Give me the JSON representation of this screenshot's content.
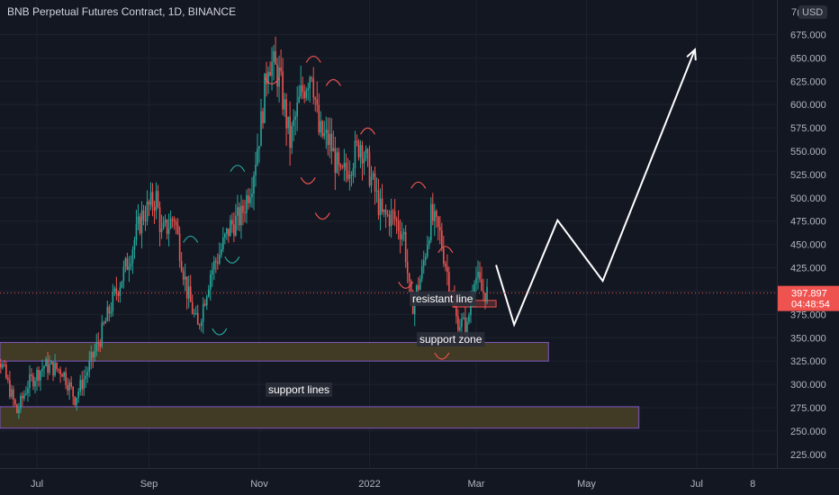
{
  "header": {
    "title": "BNB Perpetual Futures Contract, 1D, BINANCE"
  },
  "price_axis": {
    "currency_label": "USD",
    "cut_label": "7("
  },
  "last_price": {
    "value": "397.897",
    "countdown": "04:48:54"
  },
  "annotations": {
    "resistant_line": "resistant line",
    "support_zone": "support zone",
    "support_lines": "support lines"
  },
  "colors": {
    "background": "#131722",
    "up": "#26a69a",
    "down": "#ef5350",
    "zone_fill": "#4a4124",
    "zone_border": "#7e57c2",
    "projection": "#ffffff",
    "price_tag": "#ef5350"
  },
  "chart_data": {
    "type": "candlestick",
    "title": "BNB Perpetual Futures Contract, 1D, BINANCE",
    "y_ticks": [
      225,
      250,
      275,
      300,
      325,
      350,
      375,
      400,
      425,
      450,
      475,
      500,
      525,
      550,
      575,
      600,
      625,
      650,
      675
    ],
    "ylim": [
      210,
      700
    ],
    "x_ticks": [
      "Jul",
      "Sep",
      "Nov",
      "2022",
      "Mar",
      "May",
      "Jul",
      "8"
    ],
    "x_tick_dates": [
      "2021-07-01",
      "2021-09-01",
      "2021-11-01",
      "2022-01-01",
      "2022-03-01",
      "2022-05-01",
      "2022-07-01",
      "2022-08-01"
    ],
    "xlim": [
      "2021-06-02",
      "2022-08-20"
    ],
    "last_close": 397.897,
    "close_path": [
      [
        "2021-06-02",
        345
      ],
      [
        "2021-06-10",
        330
      ],
      [
        "2021-06-20",
        270
      ],
      [
        "2021-06-26",
        300
      ],
      [
        "2021-07-05",
        320
      ],
      [
        "2021-07-15",
        315
      ],
      [
        "2021-07-22",
        285
      ],
      [
        "2021-07-28",
        310
      ],
      [
        "2021-08-05",
        350
      ],
      [
        "2021-08-12",
        390
      ],
      [
        "2021-08-20",
        430
      ],
      [
        "2021-08-28",
        480
      ],
      [
        "2021-09-05",
        500
      ],
      [
        "2021-09-08",
        460
      ],
      [
        "2021-09-15",
        480
      ],
      [
        "2021-09-22",
        400
      ],
      [
        "2021-09-28",
        360
      ],
      [
        "2021-10-05",
        420
      ],
      [
        "2021-10-10",
        440
      ],
      [
        "2021-10-16",
        470
      ],
      [
        "2021-10-22",
        480
      ],
      [
        "2021-10-28",
        520
      ],
      [
        "2021-11-02",
        580
      ],
      [
        "2021-11-06",
        650
      ],
      [
        "2021-11-12",
        630
      ],
      [
        "2021-11-18",
        560
      ],
      [
        "2021-11-24",
        610
      ],
      [
        "2021-11-30",
        640
      ],
      [
        "2021-12-04",
        570
      ],
      [
        "2021-12-10",
        560
      ],
      [
        "2021-12-16",
        520
      ],
      [
        "2021-12-22",
        540
      ],
      [
        "2021-12-27",
        560
      ],
      [
        "2022-01-02",
        520
      ],
      [
        "2022-01-08",
        480
      ],
      [
        "2022-01-14",
        480
      ],
      [
        "2022-01-20",
        460
      ],
      [
        "2022-01-24",
        380
      ],
      [
        "2022-01-30",
        420
      ],
      [
        "2022-02-04",
        480
      ],
      [
        "2022-02-09",
        460
      ],
      [
        "2022-02-14",
        410
      ],
      [
        "2022-02-18",
        370
      ],
      [
        "2022-02-24",
        360
      ],
      [
        "2022-02-28",
        420
      ],
      [
        "2022-03-04",
        400
      ],
      [
        "2022-03-07",
        398
      ]
    ],
    "zones": [
      {
        "name": "support zone",
        "date_range": [
          "2021-06-02",
          "2022-04-10"
        ],
        "price_range": [
          325,
          345
        ]
      },
      {
        "name": "support lines",
        "date_range": [
          "2021-06-02",
          "2022-05-30"
        ],
        "price_range": [
          253,
          276
        ]
      },
      {
        "name": "resistant line",
        "date_range": [
          "2022-02-16",
          "2022-03-12"
        ],
        "price_range": [
          383,
          390
        ]
      }
    ],
    "projection_path": [
      [
        "2022-03-12",
        428
      ],
      [
        "2022-03-22",
        364
      ],
      [
        "2022-04-15",
        476
      ],
      [
        "2022-05-10",
        411
      ],
      [
        "2022-06-30",
        659
      ]
    ]
  }
}
